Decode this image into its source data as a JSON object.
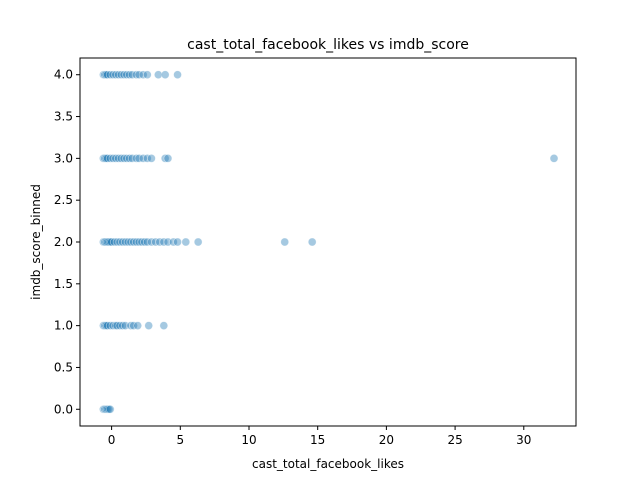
{
  "chart_data": {
    "type": "scatter",
    "title": "cast_total_facebook_likes vs imdb_score",
    "xlabel": "cast_total_facebook_likes",
    "ylabel": "imdb_score_binned",
    "xlim": [
      -2.3,
      33.8
    ],
    "ylim": [
      -0.2,
      4.2
    ],
    "xticks": [
      0,
      5,
      10,
      15,
      20,
      25,
      30
    ],
    "yticks": [
      0.0,
      0.5,
      1.0,
      1.5,
      2.0,
      2.5,
      3.0,
      3.5,
      4.0
    ],
    "xtick_labels": [
      "0",
      "5",
      "10",
      "15",
      "20",
      "25",
      "30"
    ],
    "ytick_labels": [
      "0.0",
      "0.5",
      "1.0",
      "1.5",
      "2.0",
      "2.5",
      "3.0",
      "3.5",
      "4.0"
    ],
    "grid": false,
    "marker_color": "#1f77b4",
    "marker_alpha": 0.4,
    "series": [
      {
        "points": [
          {
            "x": -0.6,
            "y": 0
          },
          {
            "x": -0.5,
            "y": 0
          },
          {
            "x": -0.4,
            "y": 0
          },
          {
            "x": -0.3,
            "y": 0
          },
          {
            "x": -0.2,
            "y": 0
          },
          {
            "x": -0.1,
            "y": 0
          },
          {
            "x": -0.6,
            "y": 1
          },
          {
            "x": -0.5,
            "y": 1
          },
          {
            "x": -0.4,
            "y": 1
          },
          {
            "x": -0.3,
            "y": 1
          },
          {
            "x": -0.1,
            "y": 1
          },
          {
            "x": 0.1,
            "y": 1
          },
          {
            "x": 0.3,
            "y": 1
          },
          {
            "x": 0.4,
            "y": 1
          },
          {
            "x": 0.6,
            "y": 1
          },
          {
            "x": 0.8,
            "y": 1
          },
          {
            "x": 1.0,
            "y": 1
          },
          {
            "x": 1.4,
            "y": 1
          },
          {
            "x": 1.6,
            "y": 1
          },
          {
            "x": 1.9,
            "y": 1
          },
          {
            "x": 2.7,
            "y": 1
          },
          {
            "x": 3.8,
            "y": 1
          },
          {
            "x": -0.6,
            "y": 2
          },
          {
            "x": -0.5,
            "y": 2
          },
          {
            "x": -0.4,
            "y": 2
          },
          {
            "x": -0.3,
            "y": 2
          },
          {
            "x": -0.2,
            "y": 2
          },
          {
            "x": -0.1,
            "y": 2
          },
          {
            "x": 0.0,
            "y": 2
          },
          {
            "x": 0.2,
            "y": 2
          },
          {
            "x": 0.4,
            "y": 2
          },
          {
            "x": 0.6,
            "y": 2
          },
          {
            "x": 0.8,
            "y": 2
          },
          {
            "x": 1.0,
            "y": 2
          },
          {
            "x": 1.2,
            "y": 2
          },
          {
            "x": 1.4,
            "y": 2
          },
          {
            "x": 1.6,
            "y": 2
          },
          {
            "x": 1.8,
            "y": 2
          },
          {
            "x": 2.0,
            "y": 2
          },
          {
            "x": 2.2,
            "y": 2
          },
          {
            "x": 2.4,
            "y": 2
          },
          {
            "x": 2.6,
            "y": 2
          },
          {
            "x": 2.9,
            "y": 2
          },
          {
            "x": 3.2,
            "y": 2
          },
          {
            "x": 3.5,
            "y": 2
          },
          {
            "x": 3.8,
            "y": 2
          },
          {
            "x": 4.1,
            "y": 2
          },
          {
            "x": 4.5,
            "y": 2
          },
          {
            "x": 4.8,
            "y": 2
          },
          {
            "x": 5.4,
            "y": 2
          },
          {
            "x": 6.3,
            "y": 2
          },
          {
            "x": 12.6,
            "y": 2
          },
          {
            "x": 14.6,
            "y": 2
          },
          {
            "x": -0.6,
            "y": 3
          },
          {
            "x": -0.5,
            "y": 3
          },
          {
            "x": -0.4,
            "y": 3
          },
          {
            "x": -0.3,
            "y": 3
          },
          {
            "x": -0.1,
            "y": 3
          },
          {
            "x": 0.1,
            "y": 3
          },
          {
            "x": 0.3,
            "y": 3
          },
          {
            "x": 0.5,
            "y": 3
          },
          {
            "x": 0.7,
            "y": 3
          },
          {
            "x": 0.9,
            "y": 3
          },
          {
            "x": 1.1,
            "y": 3
          },
          {
            "x": 1.3,
            "y": 3
          },
          {
            "x": 1.5,
            "y": 3
          },
          {
            "x": 1.8,
            "y": 3
          },
          {
            "x": 2.0,
            "y": 3
          },
          {
            "x": 2.3,
            "y": 3
          },
          {
            "x": 2.6,
            "y": 3
          },
          {
            "x": 2.9,
            "y": 3
          },
          {
            "x": 3.9,
            "y": 3
          },
          {
            "x": 4.1,
            "y": 3
          },
          {
            "x": 32.2,
            "y": 3
          },
          {
            "x": -0.6,
            "y": 4
          },
          {
            "x": -0.5,
            "y": 4
          },
          {
            "x": -0.4,
            "y": 4
          },
          {
            "x": -0.3,
            "y": 4
          },
          {
            "x": -0.1,
            "y": 4
          },
          {
            "x": 0.1,
            "y": 4
          },
          {
            "x": 0.3,
            "y": 4
          },
          {
            "x": 0.5,
            "y": 4
          },
          {
            "x": 0.7,
            "y": 4
          },
          {
            "x": 0.9,
            "y": 4
          },
          {
            "x": 1.1,
            "y": 4
          },
          {
            "x": 1.3,
            "y": 4
          },
          {
            "x": 1.5,
            "y": 4
          },
          {
            "x": 1.8,
            "y": 4
          },
          {
            "x": 2.0,
            "y": 4
          },
          {
            "x": 2.3,
            "y": 4
          },
          {
            "x": 2.6,
            "y": 4
          },
          {
            "x": 3.4,
            "y": 4
          },
          {
            "x": 3.9,
            "y": 4
          },
          {
            "x": 4.8,
            "y": 4
          }
        ]
      }
    ]
  }
}
